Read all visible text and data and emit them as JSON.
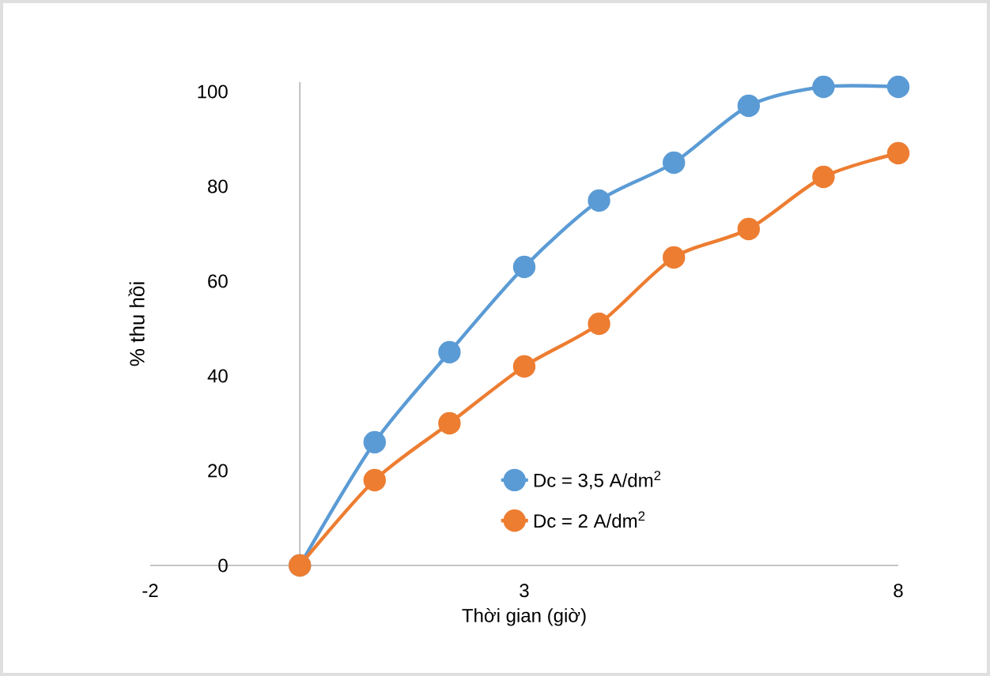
{
  "chart_data": {
    "type": "line",
    "xlabel": "Thời gian (giờ)",
    "ylabel": "% thu hồi",
    "x": [
      0,
      1,
      2,
      3,
      4,
      5,
      6,
      7,
      8
    ],
    "series": [
      {
        "name": "Dc = 3,5 A/dm$^{2}$",
        "color": "#5b9bd5",
        "values": [
          0,
          26,
          45,
          63,
          77,
          85,
          97,
          101,
          101
        ]
      },
      {
        "name": "Dc = 2 A/dm$^{2}$",
        "color": "#ed7d31",
        "values": [
          0,
          18,
          30,
          42,
          51,
          65,
          71,
          82,
          87
        ]
      }
    ],
    "xlim": [
      -2,
      8
    ],
    "xticks": [
      -2,
      3,
      8
    ],
    "ylim": [
      0,
      102
    ],
    "yticks": [
      0,
      20,
      40,
      60,
      80,
      100
    ],
    "marker": "circle",
    "line_style": "solid",
    "legend": "bottom right",
    "grid": false
  }
}
